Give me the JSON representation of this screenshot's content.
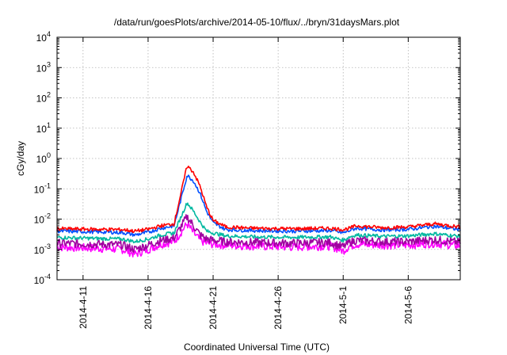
{
  "chart_data": {
    "type": "line",
    "title": "/data/run/goesPlots/archive/2014-05-10/flux/../bryn/31daysMars.plot",
    "xlabel": "Coordinated Universal Time (UTC)",
    "ylabel": "cGy/day",
    "y_scale": "log",
    "ylim": [
      0.0001,
      10000
    ],
    "xlim": [
      "2014-04-09",
      "2014-05-10"
    ],
    "grid": true,
    "legend": "none",
    "x_ticks": [
      "2014-4-11",
      "2014-4-16",
      "2014-4-21",
      "2014-4-26",
      "2014-5-1",
      "2014-5-6"
    ],
    "y_ticks": [
      {
        "base": "10",
        "exp": "-4"
      },
      {
        "base": "10",
        "exp": "-3"
      },
      {
        "base": "10",
        "exp": "-2"
      },
      {
        "base": "10",
        "exp": "-1"
      },
      {
        "base": "10",
        "exp": "0"
      },
      {
        "base": "10",
        "exp": "1"
      },
      {
        "base": "10",
        "exp": "2"
      },
      {
        "base": "10",
        "exp": "3"
      },
      {
        "base": "10",
        "exp": "4"
      }
    ],
    "x": [
      "2014-04-09",
      "2014-04-12",
      "2014-04-14",
      "2014-04-15",
      "2014-04-16",
      "2014-04-17",
      "2014-04-18",
      "2014-04-19",
      "2014-04-19.5",
      "2014-04-20",
      "2014-04-20.5",
      "2014-04-21",
      "2014-04-22",
      "2014-04-24",
      "2014-04-27",
      "2014-04-30",
      "2014-05-01",
      "2014-05-01.5",
      "2014-05-02",
      "2014-05-04",
      "2014-05-06",
      "2014-05-08",
      "2014-05-10"
    ],
    "series": [
      {
        "color": "#ff0000",
        "values": [
          0.0048,
          0.0046,
          0.0045,
          0.004,
          0.0046,
          0.006,
          0.007,
          0.58,
          0.35,
          0.12,
          0.025,
          0.009,
          0.0055,
          0.005,
          0.0048,
          0.005,
          0.0045,
          0.005,
          0.006,
          0.0052,
          0.0055,
          0.007,
          0.0055
        ]
      },
      {
        "color": "#0050ff",
        "values": [
          0.004,
          0.0038,
          0.0036,
          0.003,
          0.0037,
          0.005,
          0.006,
          0.28,
          0.18,
          0.07,
          0.018,
          0.0075,
          0.0045,
          0.0042,
          0.004,
          0.0042,
          0.0035,
          0.0042,
          0.005,
          0.0044,
          0.0046,
          0.0058,
          0.0045
        ]
      },
      {
        "color": "#00b8a0",
        "values": [
          0.0025,
          0.0023,
          0.0022,
          0.0018,
          0.0022,
          0.003,
          0.0035,
          0.035,
          0.018,
          0.008,
          0.004,
          0.0035,
          0.0028,
          0.0026,
          0.0025,
          0.0026,
          0.002,
          0.0026,
          0.003,
          0.0027,
          0.0028,
          0.0033,
          0.0027
        ]
      },
      {
        "color": "#a000a0",
        "values": [
          0.0016,
          0.0015,
          0.0014,
          0.001,
          0.0014,
          0.002,
          0.0024,
          0.012,
          0.006,
          0.003,
          0.0022,
          0.002,
          0.0018,
          0.0017,
          0.0016,
          0.0017,
          0.0012,
          0.0017,
          0.002,
          0.0018,
          0.0018,
          0.0021,
          0.0017
        ]
      },
      {
        "color": "#ff00ff",
        "values": [
          0.0012,
          0.0011,
          0.001,
          0.0007,
          0.001,
          0.0015,
          0.0018,
          0.007,
          0.0035,
          0.002,
          0.0016,
          0.0015,
          0.0014,
          0.0013,
          0.0012,
          0.0013,
          0.0009,
          0.0013,
          0.0015,
          0.0014,
          0.0014,
          0.0016,
          0.0013
        ]
      }
    ]
  }
}
